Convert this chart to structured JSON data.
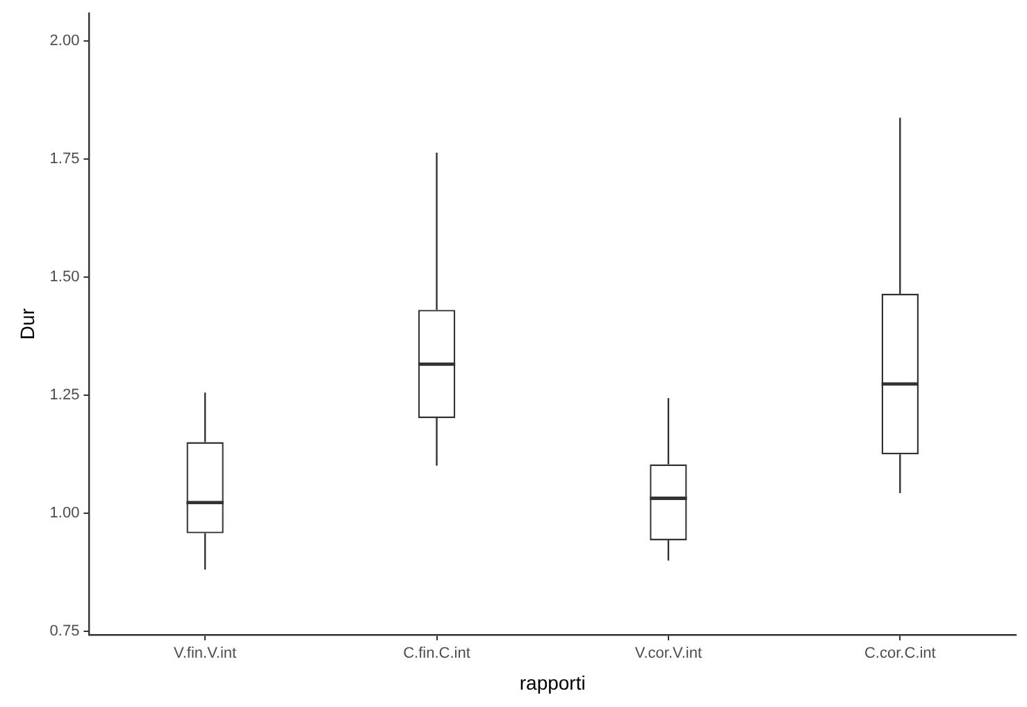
{
  "chart_data": {
    "type": "box",
    "xlabel": "rapporti",
    "ylabel": "Dur",
    "categories": [
      "V.fin.V.int",
      "C.fin.C.int",
      "V.cor.V.int",
      "C.cor.C.int"
    ],
    "boxes": [
      {
        "low": 0.88,
        "q1": 0.957,
        "median": 1.022,
        "q3": 1.15,
        "high": 1.255
      },
      {
        "low": 1.1,
        "q1": 1.201,
        "median": 1.315,
        "q3": 1.43,
        "high": 1.763
      },
      {
        "low": 0.899,
        "q1": 0.942,
        "median": 1.031,
        "q3": 1.103,
        "high": 1.243
      },
      {
        "low": 1.042,
        "q1": 1.124,
        "median": 1.273,
        "q3": 1.464,
        "high": 1.837
      }
    ],
    "color": "#333333",
    "ylim": [
      0.742,
      2.058
    ],
    "yticks": [
      {
        "value": 0.75,
        "label": "0.75"
      },
      {
        "value": 1,
        "label": "1.00"
      },
      {
        "value": 1.25,
        "label": "1.25"
      },
      {
        "value": 1.5,
        "label": "1.50"
      },
      {
        "value": 1.75,
        "label": "1.75"
      },
      {
        "value": 2,
        "label": "2.00"
      }
    ],
    "grid": false,
    "legend": false
  }
}
